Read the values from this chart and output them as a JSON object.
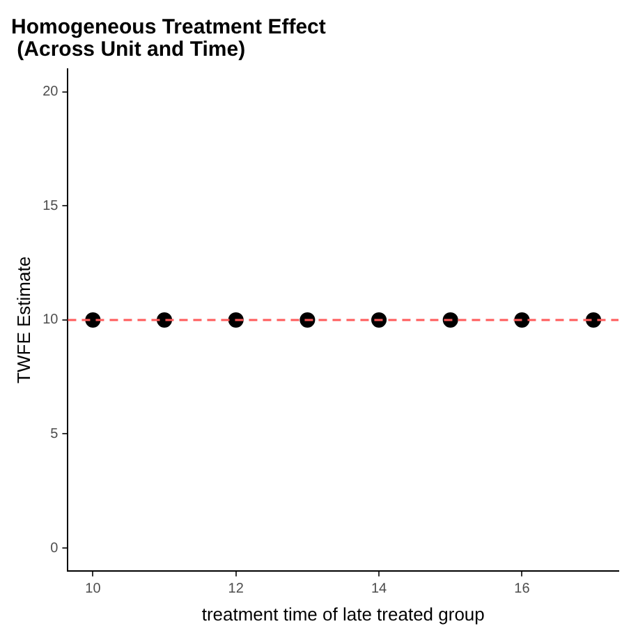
{
  "chart_data": {
    "type": "scatter",
    "title": "Homogeneous Treatment Effect\n (Across Unit and Time)",
    "xlabel": "treatment time of late treated group",
    "ylabel": "TWFE Estimate",
    "x": [
      10,
      11,
      12,
      13,
      14,
      15,
      16,
      17
    ],
    "series": [
      {
        "color": "#000000",
        "values": [
          10,
          10,
          10,
          10,
          10,
          10,
          10,
          10
        ]
      }
    ],
    "xlim": [
      9.65,
      17.35
    ],
    "xticks": [
      10,
      12,
      14,
      16
    ],
    "ylim": [
      -1,
      21
    ],
    "yticks": [
      0,
      5,
      10,
      15,
      20
    ],
    "ref_lines": [
      {
        "axis": "y",
        "value": 10,
        "color": "#ff5a5a",
        "line_style": "dashed"
      }
    ],
    "marker": "circle",
    "grid": false,
    "legend": false
  }
}
